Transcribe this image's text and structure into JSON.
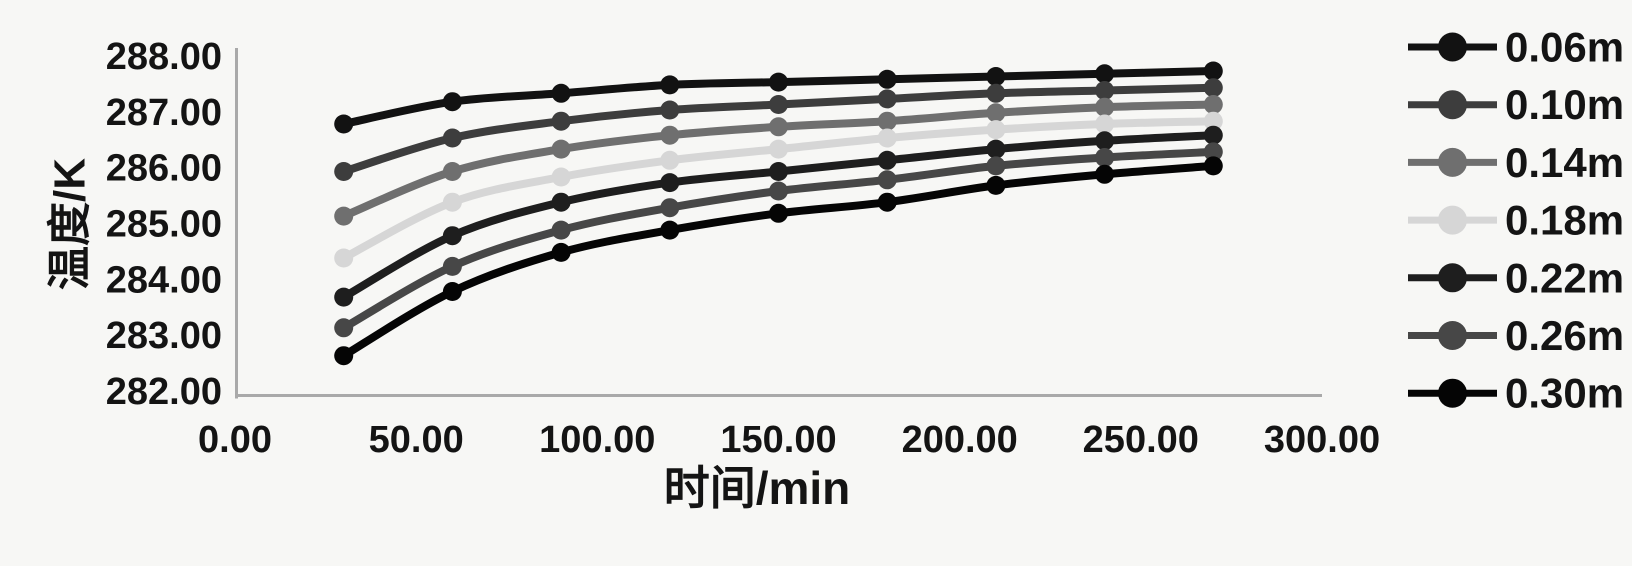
{
  "figure": {
    "background": "#f7f7f5",
    "axis_line_color": "#a9a9a9",
    "text_color": "#141414"
  },
  "chart_data": {
    "type": "line",
    "title": "",
    "xlabel": "时间/min",
    "ylabel": "温度/K",
    "xlim": [
      0,
      300
    ],
    "ylim": [
      282,
      288
    ],
    "x_ticks": [
      "0.00",
      "50.00",
      "100.00",
      "150.00",
      "200.00",
      "250.00",
      "300.00"
    ],
    "y_ticks": [
      "288.00",
      "287.00",
      "286.00",
      "285.00",
      "284.00",
      "283.00",
      "282.00"
    ],
    "grid": false,
    "legend_position": "right",
    "marker": "circle",
    "smooth": true,
    "x": [
      30,
      60,
      90,
      120,
      150,
      180,
      210,
      240,
      270
    ],
    "series": [
      {
        "name": "0.06m",
        "color": "#121212",
        "values": [
          286.8,
          287.2,
          287.35,
          287.5,
          287.55,
          287.6,
          287.65,
          287.7,
          287.75
        ]
      },
      {
        "name": "0.10m",
        "color": "#3d3d3d",
        "values": [
          285.95,
          286.55,
          286.85,
          287.05,
          287.15,
          287.25,
          287.35,
          287.4,
          287.45
        ]
      },
      {
        "name": "0.14m",
        "color": "#6f6f6f",
        "values": [
          285.15,
          285.95,
          286.35,
          286.6,
          286.75,
          286.85,
          287.0,
          287.1,
          287.15
        ]
      },
      {
        "name": "0.18m",
        "color": "#d6d6d6",
        "values": [
          284.4,
          285.4,
          285.85,
          286.15,
          286.35,
          286.55,
          286.7,
          286.8,
          286.85
        ]
      },
      {
        "name": "0.22m",
        "color": "#1e1e1e",
        "values": [
          283.7,
          284.8,
          285.4,
          285.75,
          285.95,
          286.15,
          286.35,
          286.5,
          286.6
        ]
      },
      {
        "name": "0.26m",
        "color": "#474747",
        "values": [
          283.15,
          284.25,
          284.9,
          285.3,
          285.6,
          285.8,
          286.05,
          286.2,
          286.3
        ]
      },
      {
        "name": "0.30m",
        "color": "#050505",
        "values": [
          282.65,
          283.8,
          284.5,
          284.9,
          285.2,
          285.4,
          285.7,
          285.9,
          286.05
        ]
      }
    ]
  }
}
